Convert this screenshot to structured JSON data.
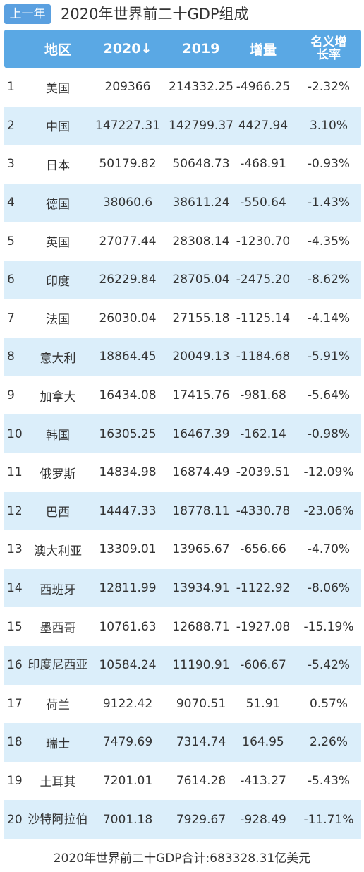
{
  "nav": {
    "prev_label": "上一年"
  },
  "title": "2020年世界前二十GDP组成",
  "columns": {
    "region": "地区",
    "y2020": "2020↓",
    "y2019": "2019",
    "increase": "增量",
    "nominal_growth": "名义增长率"
  },
  "rows": [
    {
      "rank": "1",
      "region": "美国",
      "y2020": "209366",
      "y2019": "214332.25",
      "increase": "-4966.25",
      "pct": "-2.32%"
    },
    {
      "rank": "2",
      "region": "中国",
      "y2020": "147227.31",
      "y2019": "142799.37",
      "increase": "4427.94",
      "pct": "3.10%"
    },
    {
      "rank": "3",
      "region": "日本",
      "y2020": "50179.82",
      "y2019": "50648.73",
      "increase": "-468.91",
      "pct": "-0.93%"
    },
    {
      "rank": "4",
      "region": "德国",
      "y2020": "38060.6",
      "y2019": "38611.24",
      "increase": "-550.64",
      "pct": "-1.43%"
    },
    {
      "rank": "5",
      "region": "英国",
      "y2020": "27077.44",
      "y2019": "28308.14",
      "increase": "-1230.70",
      "pct": "-4.35%"
    },
    {
      "rank": "6",
      "region": "印度",
      "y2020": "26229.84",
      "y2019": "28705.04",
      "increase": "-2475.20",
      "pct": "-8.62%"
    },
    {
      "rank": "7",
      "region": "法国",
      "y2020": "26030.04",
      "y2019": "27155.18",
      "increase": "-1125.14",
      "pct": "-4.14%"
    },
    {
      "rank": "8",
      "region": "意大利",
      "y2020": "18864.45",
      "y2019": "20049.13",
      "increase": "-1184.68",
      "pct": "-5.91%"
    },
    {
      "rank": "9",
      "region": "加拿大",
      "y2020": "16434.08",
      "y2019": "17415.76",
      "increase": "-981.68",
      "pct": "-5.64%"
    },
    {
      "rank": "10",
      "region": "韩国",
      "y2020": "16305.25",
      "y2019": "16467.39",
      "increase": "-162.14",
      "pct": "-0.98%"
    },
    {
      "rank": "11",
      "region": "俄罗斯",
      "y2020": "14834.98",
      "y2019": "16874.49",
      "increase": "-2039.51",
      "pct": "-12.09%"
    },
    {
      "rank": "12",
      "region": "巴西",
      "y2020": "14447.33",
      "y2019": "18778.11",
      "increase": "-4330.78",
      "pct": "-23.06%"
    },
    {
      "rank": "13",
      "region": "澳大利亚",
      "y2020": "13309.01",
      "y2019": "13965.67",
      "increase": "-656.66",
      "pct": "-4.70%"
    },
    {
      "rank": "14",
      "region": "西班牙",
      "y2020": "12811.99",
      "y2019": "13934.91",
      "increase": "-1122.92",
      "pct": "-8.06%"
    },
    {
      "rank": "15",
      "region": "墨西哥",
      "y2020": "10761.63",
      "y2019": "12688.71",
      "increase": "-1927.08",
      "pct": "-15.19%"
    },
    {
      "rank": "16",
      "region": "印度尼西亚",
      "y2020": "10584.24",
      "y2019": "11190.91",
      "increase": "-606.67",
      "pct": "-5.42%"
    },
    {
      "rank": "17",
      "region": "荷兰",
      "y2020": "9122.42",
      "y2019": "9070.51",
      "increase": "51.91",
      "pct": "0.57%"
    },
    {
      "rank": "18",
      "region": "瑞士",
      "y2020": "7479.69",
      "y2019": "7314.74",
      "increase": "164.95",
      "pct": "2.26%"
    },
    {
      "rank": "19",
      "region": "土耳其",
      "y2020": "7201.01",
      "y2019": "7614.28",
      "increase": "-413.27",
      "pct": "-5.43%"
    },
    {
      "rank": "20",
      "region": "沙特阿拉伯",
      "y2020": "7001.18",
      "y2019": "7929.67",
      "increase": "-928.49",
      "pct": "-11.71%"
    }
  ],
  "footer": "2020年世界前二十GDP合计:683328.31亿美元",
  "colors": {
    "accent": "#5aa8e4",
    "row_alt": "#dbeefa",
    "button": "#5aa0e0"
  }
}
